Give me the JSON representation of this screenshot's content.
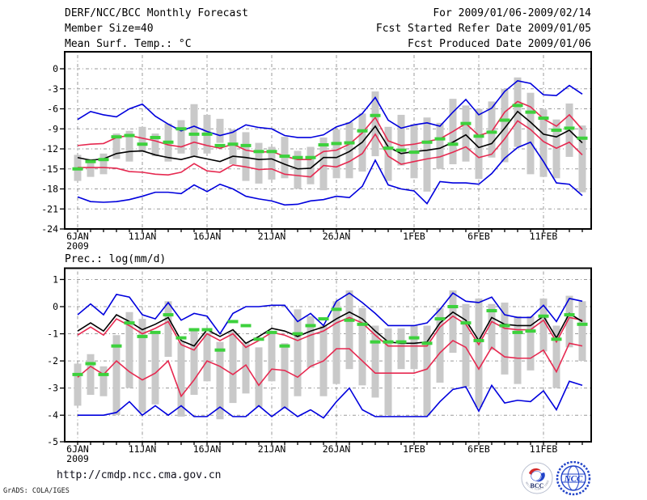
{
  "header": {
    "left": [
      "DERF/NCC/BCC Monthly Forecast",
      "Member Size=40"
    ],
    "right": [
      "For 2009/01/06-2009/02/14",
      "Fcst Started Refer Date 2009/01/05",
      "Fcst Produced Date 2009/01/06"
    ]
  },
  "footer": {
    "url": "http://cmdp.ncc.cma.gov.cn",
    "credit": "GrADS: COLA/IGES",
    "logos": {
      "bcc": {
        "label": "BCC",
        "ring_text": "BEIJING CLIMATE CENTER"
      },
      "ncc": {
        "label": "NCC"
      }
    }
  },
  "colors": {
    "extreme": "#0000dd",
    "quartile": "#e62950",
    "mean": "#000000",
    "obs": "#3dd13d",
    "bar": "#c9c9c9",
    "grid": "#9a9a9a",
    "frame": "#000000",
    "ncc_blue": "#2143c8",
    "bcc_navy": "#1b2a66",
    "bcc_red": "#d42828"
  },
  "chart_data": [
    {
      "type": "line",
      "title": "DERF/NCC/BCC Monthly Forecast",
      "ylabel": "Mean Surf. Temp.: °C",
      "xlabel": "",
      "x_year": "2009",
      "x_tick_labels": [
        "6JAN",
        "11JAN",
        "16JAN",
        "21JAN",
        "26JAN",
        "1FEB",
        "6FEB",
        "11FEB"
      ],
      "x_tick_days": [
        0,
        5,
        10,
        15,
        20,
        26,
        31,
        36
      ],
      "y_ticks": [
        0,
        -3,
        -6,
        -9,
        -12,
        -15,
        -18,
        -21,
        -24
      ],
      "ylim": [
        -24,
        2.5
      ],
      "grid": true,
      "legend_position": "none",
      "series": [
        {
          "name": "ensemble-max",
          "color": "extreme",
          "values": [
            -7.6,
            -6.4,
            -6.9,
            -7.2,
            -6.0,
            -5.3,
            -7.1,
            -8.3,
            -9.3,
            -8.6,
            -9.4,
            -10.0,
            -9.5,
            -8.4,
            -8.8,
            -9.0,
            -10.0,
            -10.3,
            -10.3,
            -9.9,
            -8.7,
            -8.1,
            -6.7,
            -4.3,
            -7.7,
            -8.9,
            -8.4,
            -8.1,
            -8.6,
            -6.5,
            -4.6,
            -6.9,
            -5.9,
            -3.4,
            -1.8,
            -2.2,
            -3.9,
            -4.0,
            -2.5,
            -3.8
          ]
        },
        {
          "name": "upper-quartile",
          "color": "quartile",
          "values": [
            -11.5,
            -11.3,
            -11.2,
            -10.3,
            -10.0,
            -10.4,
            -10.8,
            -11.4,
            -11.7,
            -11.0,
            -11.5,
            -11.9,
            -11.3,
            -12.2,
            -12.5,
            -12.4,
            -13.1,
            -13.6,
            -13.6,
            -12.4,
            -12.2,
            -11.3,
            -9.6,
            -7.3,
            -10.8,
            -11.5,
            -11.3,
            -10.9,
            -10.5,
            -9.4,
            -8.2,
            -10.0,
            -9.4,
            -6.5,
            -4.9,
            -5.7,
            -7.5,
            -8.6,
            -6.9,
            -9.1
          ]
        },
        {
          "name": "ensemble-mean",
          "color": "mean",
          "values": [
            -13.3,
            -13.7,
            -13.5,
            -12.7,
            -12.4,
            -12.3,
            -12.9,
            -13.3,
            -13.6,
            -13.1,
            -13.5,
            -13.9,
            -13.1,
            -13.3,
            -13.6,
            -13.5,
            -14.3,
            -15.0,
            -14.9,
            -13.3,
            -13.3,
            -12.4,
            -11.0,
            -8.6,
            -11.7,
            -12.7,
            -12.4,
            -12.2,
            -11.9,
            -11.0,
            -9.9,
            -11.8,
            -11.2,
            -8.9,
            -6.4,
            -8.0,
            -9.8,
            -10.2,
            -9.2,
            -11.1
          ]
        },
        {
          "name": "lower-quartile",
          "color": "quartile",
          "values": [
            -14.8,
            -14.8,
            -14.8,
            -14.9,
            -15.4,
            -15.5,
            -15.8,
            -15.9,
            -15.5,
            -14.2,
            -15.3,
            -15.5,
            -14.4,
            -14.7,
            -15.1,
            -15.0,
            -15.8,
            -16.0,
            -16.2,
            -14.5,
            -14.7,
            -13.9,
            -12.7,
            -9.8,
            -13.1,
            -14.3,
            -13.9,
            -13.5,
            -13.2,
            -12.5,
            -11.7,
            -13.3,
            -12.8,
            -10.5,
            -7.8,
            -9.1,
            -10.9,
            -11.9,
            -11.0,
            -12.9
          ]
        },
        {
          "name": "ensemble-min",
          "color": "extreme",
          "values": [
            -19.2,
            -19.9,
            -20.0,
            -19.9,
            -19.6,
            -19.1,
            -18.5,
            -18.5,
            -18.7,
            -17.4,
            -18.4,
            -17.3,
            -18.0,
            -19.1,
            -19.5,
            -19.8,
            -20.4,
            -20.3,
            -19.8,
            -19.6,
            -19.1,
            -19.3,
            -17.6,
            -13.7,
            -17.4,
            -18.0,
            -18.3,
            -20.2,
            -16.9,
            -17.1,
            -17.1,
            -17.3,
            -15.7,
            -13.4,
            -11.8,
            -11.0,
            -13.9,
            -17.1,
            -17.3,
            -19.0
          ]
        }
      ],
      "obs": {
        "name": "observation",
        "color": "obs",
        "values": [
          -15.0,
          -13.9,
          -13.6,
          -10.2,
          -10.0,
          -11.3,
          -10.3,
          -11.0,
          -9.0,
          -9.8,
          -9.8,
          -11.5,
          -11.3,
          -11.5,
          -12.4,
          -12.4,
          -13.1,
          -13.3,
          -13.3,
          -11.4,
          -11.2,
          -11.1,
          -9.3,
          -7.0,
          -11.9,
          -12.2,
          -12.5,
          -11.0,
          -10.5,
          -11.3,
          -8.2,
          -10.1,
          -9.5,
          -7.7,
          -5.5,
          -6.5,
          -7.4,
          -9.2,
          -8.9,
          -10.4
        ]
      },
      "spread_bars": {
        "lo": [
          -16.8,
          -16.2,
          -15.8,
          -13.5,
          -13.9,
          -12.5,
          -13.1,
          -13.9,
          -12.7,
          -13.1,
          -12.7,
          -11.1,
          -14.3,
          -16.8,
          -17.2,
          -16.6,
          -16.4,
          -18.0,
          -17.3,
          -18.2,
          -16.4,
          -16.4,
          -15.4,
          -13.1,
          -16.8,
          -14.5,
          -16.4,
          -18.4,
          -15.0,
          -14.3,
          -13.9,
          -16.5,
          -13.3,
          -14.0,
          -11.7,
          -15.8,
          -16.2,
          -16.4,
          -13.2,
          -18.5
        ],
        "hi": [
          -12.9,
          -13.5,
          -12.7,
          -9.7,
          -9.3,
          -8.7,
          -9.7,
          -8.2,
          -7.7,
          -5.3,
          -6.9,
          -7.5,
          -9.1,
          -9.5,
          -11.1,
          -11.7,
          -10.2,
          -12.3,
          -11.7,
          -10.3,
          -9.1,
          -8.0,
          -6.7,
          -3.4,
          -8.7,
          -6.9,
          -8.3,
          -7.3,
          -8.1,
          -4.5,
          -5.5,
          -6.0,
          -4.9,
          -3.0,
          -1.3,
          -3.6,
          -6.1,
          -7.6,
          -5.2,
          -8.5
        ]
      }
    },
    {
      "type": "line",
      "title": "DERF/NCC/BCC Monthly Forecast",
      "ylabel": "Prec.: log(mm/d)",
      "xlabel": "",
      "x_year": "2009",
      "x_tick_labels": [
        "6JAN",
        "11JAN",
        "16JAN",
        "21JAN",
        "26JAN",
        "1FEB",
        "6FEB",
        "11FEB"
      ],
      "x_tick_days": [
        0,
        5,
        10,
        15,
        20,
        26,
        31,
        36
      ],
      "y_ticks": [
        1,
        0,
        -1,
        -2,
        -3,
        -4,
        -5
      ],
      "ylim": [
        -5,
        1.4
      ],
      "grid": true,
      "legend_position": "none",
      "series": [
        {
          "name": "ensemble-max",
          "color": "extreme",
          "values": [
            -0.3,
            0.1,
            -0.3,
            0.45,
            0.35,
            -0.3,
            -0.45,
            0.15,
            -0.5,
            -0.25,
            -0.35,
            -1.0,
            -0.25,
            0.0,
            0.0,
            0.05,
            0.05,
            -0.55,
            -0.25,
            -0.7,
            0.2,
            0.5,
            0.15,
            -0.25,
            -0.7,
            -0.7,
            -0.7,
            -0.6,
            -0.1,
            0.5,
            0.2,
            0.15,
            0.35,
            -0.3,
            -0.4,
            -0.4,
            0.05,
            -0.55,
            0.3,
            0.2
          ]
        },
        {
          "name": "upper-quartile",
          "color": "quartile",
          "values": [
            -1.05,
            -0.75,
            -1.05,
            -0.45,
            -0.7,
            -1.0,
            -0.8,
            -0.55,
            -1.4,
            -1.6,
            -1.0,
            -1.25,
            -1.0,
            -1.5,
            -1.25,
            -0.95,
            -1.05,
            -1.25,
            -1.05,
            -0.9,
            -0.6,
            -0.4,
            -0.6,
            -1.05,
            -1.45,
            -1.45,
            -1.45,
            -1.45,
            -0.75,
            -0.35,
            -0.65,
            -1.4,
            -0.55,
            -0.8,
            -0.85,
            -0.85,
            -0.5,
            -1.3,
            -0.4,
            -0.5
          ]
        },
        {
          "name": "ensemble-mean",
          "color": "mean",
          "values": [
            -0.9,
            -0.6,
            -0.9,
            -0.3,
            -0.55,
            -0.85,
            -0.65,
            -0.4,
            -1.25,
            -1.45,
            -0.85,
            -1.1,
            -0.85,
            -1.35,
            -1.1,
            -0.8,
            -0.9,
            -1.1,
            -0.9,
            -0.75,
            -0.45,
            -0.2,
            -0.45,
            -0.9,
            -1.3,
            -1.35,
            -1.35,
            -1.3,
            -0.6,
            -0.2,
            -0.5,
            -1.25,
            -0.4,
            -0.65,
            -0.7,
            -0.7,
            -0.35,
            -1.15,
            -0.25,
            -0.55
          ]
        },
        {
          "name": "lower-quartile",
          "color": "quartile",
          "values": [
            -2.6,
            -2.2,
            -2.5,
            -2.0,
            -2.4,
            -2.7,
            -2.45,
            -2.0,
            -3.3,
            -2.7,
            -2.0,
            -2.2,
            -2.5,
            -2.15,
            -2.9,
            -2.3,
            -2.35,
            -2.6,
            -2.2,
            -2.0,
            -1.55,
            -1.55,
            -2.0,
            -2.45,
            -2.45,
            -2.45,
            -2.45,
            -2.3,
            -1.7,
            -1.25,
            -1.5,
            -2.3,
            -1.5,
            -1.85,
            -1.9,
            -1.9,
            -1.6,
            -2.4,
            -1.35,
            -1.45
          ]
        },
        {
          "name": "ensemble-min",
          "color": "extreme",
          "values": [
            -4.0,
            -4.0,
            -4.0,
            -3.9,
            -3.5,
            -4.0,
            -3.65,
            -4.0,
            -3.65,
            -4.05,
            -4.05,
            -3.7,
            -4.05,
            -4.05,
            -3.65,
            -4.05,
            -3.7,
            -4.05,
            -3.8,
            -4.1,
            -3.5,
            -3.0,
            -3.8,
            -4.05,
            -4.05,
            -4.05,
            -4.05,
            -4.05,
            -3.5,
            -3.05,
            -2.95,
            -3.85,
            -2.9,
            -3.55,
            -3.45,
            -3.5,
            -3.1,
            -3.8,
            -2.75,
            -2.9
          ]
        }
      ],
      "obs": {
        "name": "observation",
        "color": "obs",
        "values": [
          -2.5,
          -2.1,
          -2.5,
          -1.45,
          -0.6,
          -1.1,
          -0.95,
          -0.3,
          -1.15,
          -0.85,
          -0.85,
          -1.6,
          -0.55,
          -0.7,
          -1.2,
          -0.95,
          -1.45,
          -1.0,
          -0.7,
          -0.45,
          -0.1,
          -0.5,
          -0.65,
          -1.3,
          -1.3,
          -1.3,
          -1.15,
          -1.35,
          -0.45,
          0.0,
          -0.6,
          -1.25,
          -0.15,
          -0.7,
          -0.95,
          -0.9,
          -0.35,
          -1.2,
          -0.3,
          -0.65
        ]
      },
      "spread_bars": {
        "lo": [
          -3.65,
          -3.25,
          -3.3,
          -4.0,
          -3.0,
          -3.9,
          -3.6,
          -1.85,
          -4.05,
          -3.25,
          -2.75,
          -4.15,
          -3.55,
          -3.2,
          -3.7,
          -2.75,
          -3.75,
          -3.3,
          -2.25,
          -3.3,
          -2.85,
          -2.3,
          -2.9,
          -3.35,
          -4.0,
          -2.3,
          -2.3,
          -4.0,
          -2.8,
          -1.7,
          -2.95,
          -3.7,
          -1.6,
          -2.5,
          -2.85,
          -2.35,
          -1.65,
          -3.0,
          -1.5,
          -2.0
        ],
        "hi": [
          -2.1,
          -1.75,
          -2.2,
          -1.05,
          -0.2,
          -0.45,
          -0.95,
          0.2,
          -1.3,
          -0.9,
          -0.95,
          -1.3,
          -0.9,
          -1.3,
          -1.5,
          -0.9,
          -1.35,
          -0.1,
          -0.35,
          -0.7,
          0.2,
          0.6,
          -0.05,
          -0.7,
          -0.8,
          -0.8,
          -0.7,
          -0.7,
          -0.05,
          0.6,
          0.1,
          0.3,
          0.1,
          0.15,
          -0.35,
          -0.35,
          0.3,
          -0.7,
          0.4,
          0.2
        ]
      }
    }
  ]
}
